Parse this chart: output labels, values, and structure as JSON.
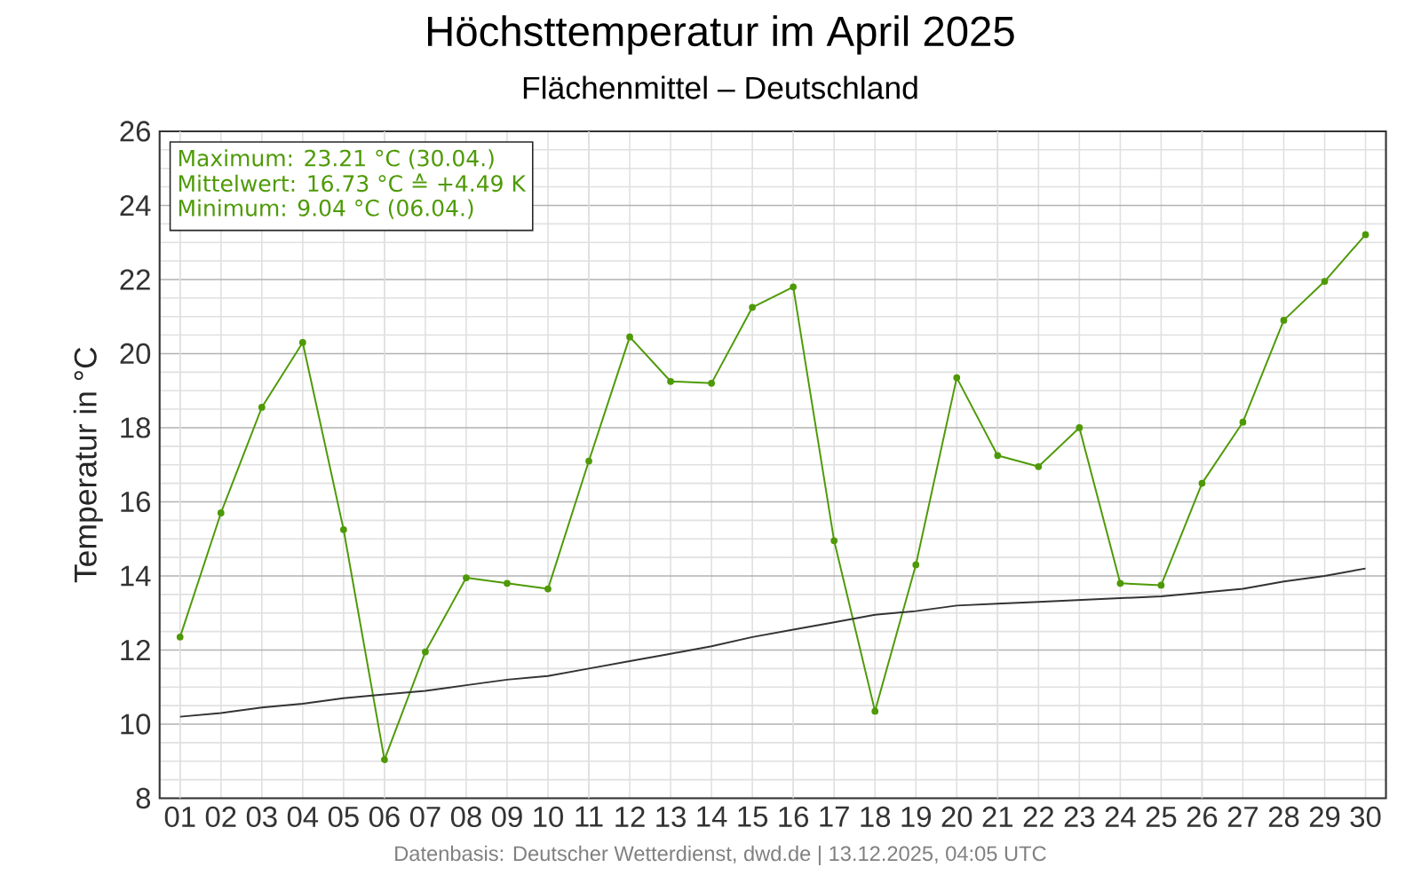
{
  "chart_data": {
    "type": "line",
    "title": "Höchsttemperatur im April 2025",
    "subtitle": "Flächenmittel – Deutschland",
    "ylabel": "Temperatur in °C",
    "categories": [
      "01",
      "02",
      "03",
      "04",
      "05",
      "06",
      "07",
      "08",
      "09",
      "10",
      "11",
      "12",
      "13",
      "14",
      "15",
      "16",
      "17",
      "18",
      "19",
      "20",
      "21",
      "22",
      "23",
      "24",
      "25",
      "26",
      "27",
      "28",
      "29",
      "30"
    ],
    "series": [
      {
        "color": "#4e9a06",
        "marker": "circle",
        "values": [
          12.35,
          15.7,
          18.55,
          20.3,
          15.25,
          9.04,
          11.95,
          13.95,
          13.8,
          13.65,
          17.1,
          20.45,
          19.25,
          19.2,
          21.25,
          21.8,
          14.95,
          10.35,
          14.3,
          19.35,
          17.25,
          16.95,
          18.0,
          13.8,
          13.75,
          16.5,
          18.15,
          20.9,
          21.95,
          23.21
        ]
      },
      {
        "color": "#333333",
        "marker": "none",
        "values": [
          10.2,
          10.3,
          10.45,
          10.55,
          10.7,
          10.8,
          10.9,
          11.05,
          11.2,
          11.3,
          11.5,
          11.7,
          11.9,
          12.1,
          12.35,
          12.55,
          12.75,
          12.95,
          13.05,
          13.2,
          13.25,
          13.3,
          13.35,
          13.4,
          13.45,
          13.55,
          13.65,
          13.85,
          14.0,
          14.2
        ]
      }
    ],
    "ylim": [
      8,
      26
    ],
    "yticks": [
      8,
      10,
      12,
      14,
      16,
      18,
      20,
      22,
      24,
      26
    ],
    "grid": true,
    "annotations": [
      "Maximum: 23.21 °C (30.04.)",
      "Mittelwert: 16.73 °C ≙ +4.49 K",
      "Minimum: 9.04 °C (06.04.)",
      "Datenbasis: Deutscher Wetterdienst, dwd.de | 13.12.2025, 04:05 UTC"
    ]
  }
}
